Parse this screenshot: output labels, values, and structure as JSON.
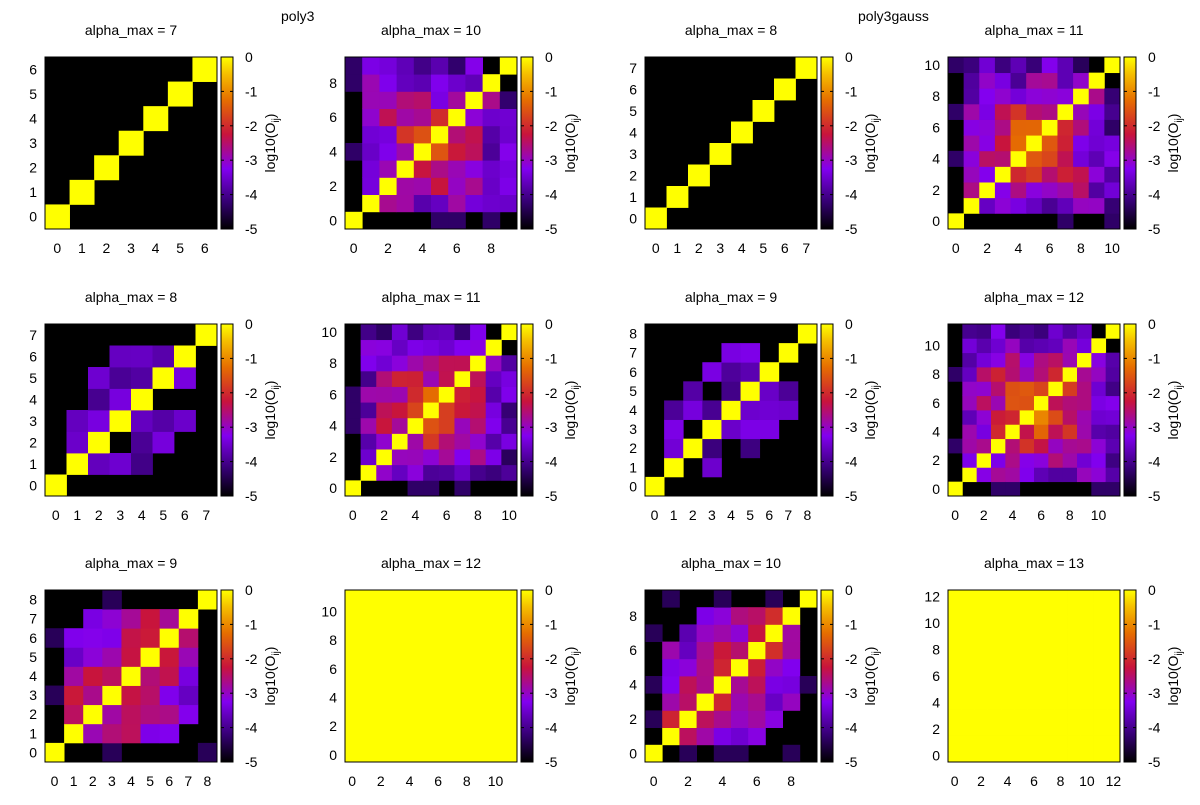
{
  "figure": {
    "group_titles": [
      "poly3",
      "poly3gauss"
    ]
  },
  "chart_data": [
    {
      "type": "heatmap",
      "group": "poly3",
      "title": "alpha_max = 7",
      "n": 7,
      "mode": "identity",
      "xticks": [
        "0",
        "1",
        "2",
        "3",
        "4",
        "5",
        "6"
      ],
      "yticks": [
        "0",
        "1",
        "2",
        "3",
        "4",
        "5",
        "6"
      ],
      "colorbar": {
        "ticks": [
          "0",
          "-1",
          "-2",
          "-3",
          "-4",
          "-5"
        ],
        "label_main": "log10(O",
        "label_sub": "ij",
        "label_end": ")",
        "range": [
          -5,
          0
        ]
      }
    },
    {
      "type": "heatmap",
      "group": "poly3",
      "title": "alpha_max = 10",
      "n": 10,
      "mode": "partial",
      "xticks": [
        "0",
        "2",
        "4",
        "6",
        "8"
      ],
      "yticks": [
        "0",
        "2",
        "4",
        "6",
        "8"
      ],
      "colorbar": {
        "ticks": [
          "0",
          "-1",
          "-2",
          "-3",
          "-4",
          "-5"
        ],
        "label_main": "log10(O",
        "label_sub": "ij",
        "label_end": ")",
        "range": [
          -5,
          0
        ]
      }
    },
    {
      "type": "heatmap",
      "group": "poly3gauss",
      "title": "alpha_max = 8",
      "n": 8,
      "mode": "identity",
      "xticks": [
        "0",
        "1",
        "2",
        "3",
        "4",
        "5",
        "6",
        "7"
      ],
      "yticks": [
        "0",
        "1",
        "2",
        "3",
        "4",
        "5",
        "6",
        "7"
      ],
      "colorbar": {
        "ticks": [
          "0",
          "-1",
          "-2",
          "-3",
          "-4",
          "-5"
        ],
        "label_main": "log10(O",
        "label_sub": "ij",
        "label_end": ")",
        "range": [
          -5,
          0
        ]
      }
    },
    {
      "type": "heatmap",
      "group": "poly3gauss",
      "title": "alpha_max = 11",
      "n": 11,
      "mode": "partial",
      "xticks": [
        "0",
        "2",
        "4",
        "6",
        "8",
        "10"
      ],
      "yticks": [
        "0",
        "2",
        "4",
        "6",
        "8",
        "10"
      ],
      "colorbar": {
        "ticks": [
          "0",
          "-1",
          "-2",
          "-3",
          "-4",
          "-5"
        ],
        "label_main": "log10(O",
        "label_sub": "ij",
        "label_end": ")",
        "range": [
          -5,
          0
        ]
      }
    },
    {
      "type": "heatmap",
      "group": "poly3",
      "title": "alpha_max = 8",
      "n": 8,
      "mode": "sparse",
      "xticks": [
        "0",
        "1",
        "2",
        "3",
        "4",
        "5",
        "6",
        "7"
      ],
      "yticks": [
        "0",
        "1",
        "2",
        "3",
        "4",
        "5",
        "6",
        "7"
      ],
      "colorbar": {
        "ticks": [
          "0",
          "-1",
          "-2",
          "-3",
          "-4",
          "-5"
        ],
        "label_main": "log10(O",
        "label_sub": "ij",
        "label_end": ")",
        "range": [
          -5,
          0
        ]
      }
    },
    {
      "type": "heatmap",
      "group": "poly3",
      "title": "alpha_max = 11",
      "n": 11,
      "mode": "partial",
      "xticks": [
        "0",
        "2",
        "4",
        "6",
        "8",
        "10"
      ],
      "yticks": [
        "0",
        "2",
        "4",
        "6",
        "8",
        "10"
      ],
      "colorbar": {
        "ticks": [
          "0",
          "-1",
          "-2",
          "-3",
          "-4",
          "-5"
        ],
        "label_main": "log10(O",
        "label_sub": "ij",
        "label_end": ")",
        "range": [
          -5,
          0
        ]
      }
    },
    {
      "type": "heatmap",
      "group": "poly3gauss",
      "title": "alpha_max = 9",
      "n": 9,
      "mode": "sparse",
      "xticks": [
        "0",
        "1",
        "2",
        "3",
        "4",
        "5",
        "6",
        "7",
        "8"
      ],
      "yticks": [
        "0",
        "1",
        "2",
        "3",
        "4",
        "5",
        "6",
        "7",
        "8"
      ],
      "colorbar": {
        "ticks": [
          "0",
          "-1",
          "-2",
          "-3",
          "-4",
          "-5"
        ],
        "label_main": "log10(O",
        "label_sub": "ij",
        "label_end": ")",
        "range": [
          -5,
          0
        ]
      }
    },
    {
      "type": "heatmap",
      "group": "poly3gauss",
      "title": "alpha_max = 12",
      "n": 12,
      "mode": "partial",
      "xticks": [
        "0",
        "2",
        "4",
        "6",
        "8",
        "10"
      ],
      "yticks": [
        "0",
        "2",
        "4",
        "6",
        "8",
        "10"
      ],
      "colorbar": {
        "ticks": [
          "0",
          "-1",
          "-2",
          "-3",
          "-4",
          "-5"
        ],
        "label_main": "log10(O",
        "label_sub": "ij",
        "label_end": ")",
        "range": [
          -5,
          0
        ]
      }
    },
    {
      "type": "heatmap",
      "group": "poly3",
      "title": "alpha_max = 9",
      "n": 9,
      "mode": "medium",
      "xticks": [
        "0",
        "1",
        "2",
        "3",
        "4",
        "5",
        "6",
        "7",
        "8"
      ],
      "yticks": [
        "0",
        "1",
        "2",
        "3",
        "4",
        "5",
        "6",
        "7",
        "8"
      ],
      "colorbar": {
        "ticks": [
          "0",
          "-1",
          "-2",
          "-3",
          "-4",
          "-5"
        ],
        "label_main": "log10(O",
        "label_sub": "ij",
        "label_end": ")",
        "range": [
          -5,
          0
        ]
      }
    },
    {
      "type": "heatmap",
      "group": "poly3",
      "title": "alpha_max = 12",
      "n": 12,
      "mode": "full",
      "xticks": [
        "0",
        "2",
        "4",
        "6",
        "8",
        "10"
      ],
      "yticks": [
        "0",
        "2",
        "4",
        "6",
        "8",
        "10"
      ],
      "colorbar": {
        "ticks": [
          "0",
          "-1",
          "-2",
          "-3",
          "-4",
          "-5"
        ],
        "label_main": "log10(O",
        "label_sub": "ij",
        "label_end": ")",
        "range": [
          -5,
          0
        ]
      }
    },
    {
      "type": "heatmap",
      "group": "poly3gauss",
      "title": "alpha_max = 10",
      "n": 10,
      "mode": "medium",
      "xticks": [
        "0",
        "2",
        "4",
        "6",
        "8"
      ],
      "yticks": [
        "0",
        "2",
        "4",
        "6",
        "8"
      ],
      "colorbar": {
        "ticks": [
          "0",
          "-1",
          "-2",
          "-3",
          "-4",
          "-5"
        ],
        "label_main": "log10(O",
        "label_sub": "ij",
        "label_end": ")",
        "range": [
          -5,
          0
        ]
      }
    },
    {
      "type": "heatmap",
      "group": "poly3gauss",
      "title": "alpha_max = 13",
      "n": 13,
      "mode": "full",
      "xticks": [
        "0",
        "2",
        "4",
        "6",
        "8",
        "10",
        "12"
      ],
      "yticks": [
        "0",
        "2",
        "4",
        "6",
        "8",
        "10",
        "12"
      ],
      "colorbar": {
        "ticks": [
          "0",
          "-1",
          "-2",
          "-3",
          "-4",
          "-5"
        ],
        "label_main": "log10(O",
        "label_sub": "ij",
        "label_end": ")",
        "range": [
          -5,
          0
        ]
      }
    }
  ]
}
